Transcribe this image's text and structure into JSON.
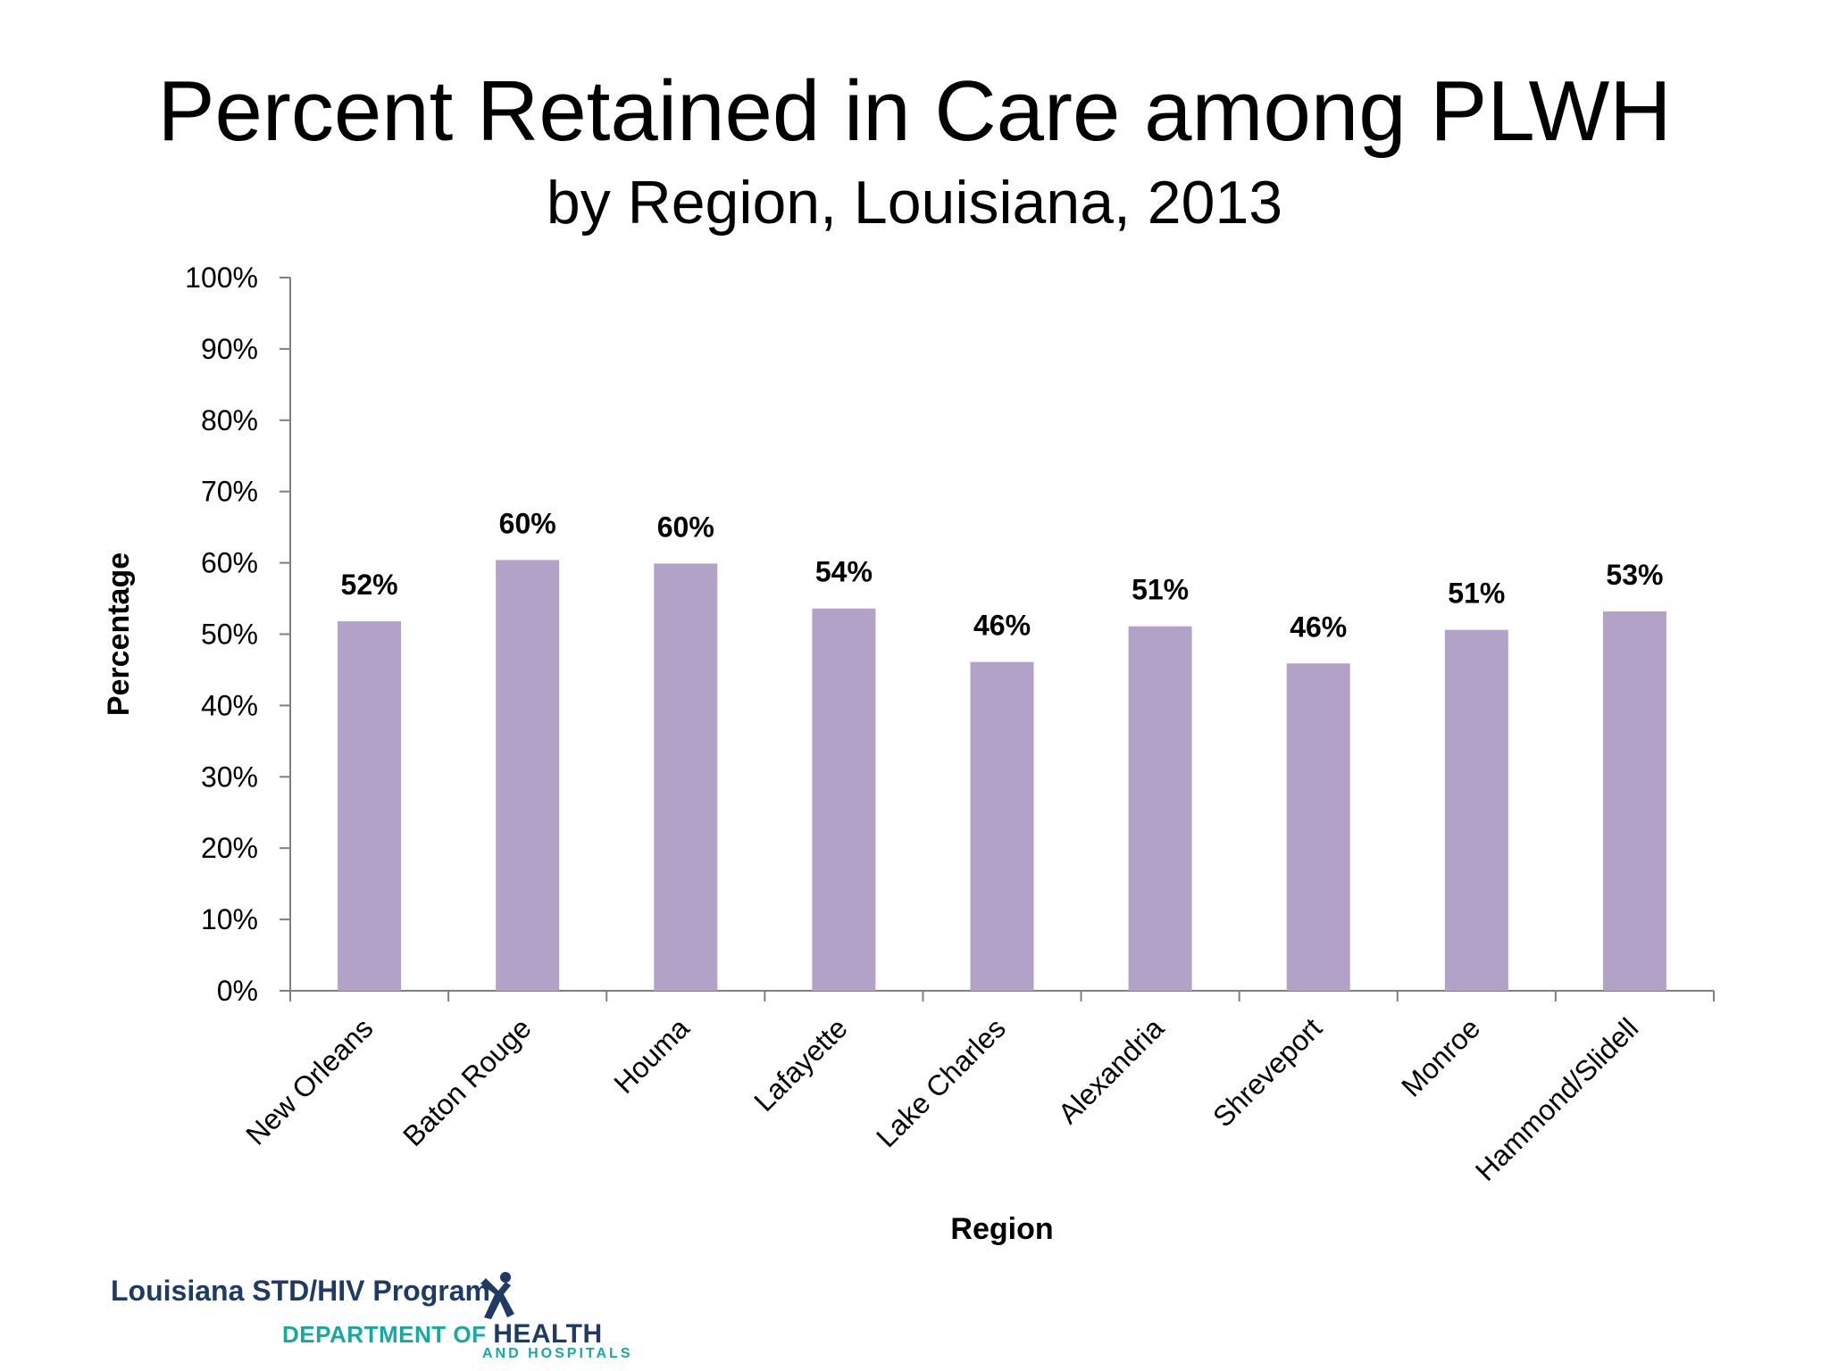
{
  "chart_data": {
    "type": "bar",
    "title": "Percent Retained in Care among PLWH",
    "subtitle": "by Region, Louisiana, 2013",
    "xlabel": "Region",
    "ylabel": "Percentage",
    "ylim": [
      0,
      100
    ],
    "yticks": [
      "0%",
      "10%",
      "20%",
      "30%",
      "40%",
      "50%",
      "60%",
      "70%",
      "80%",
      "90%",
      "100%"
    ],
    "categories": [
      "New Orleans",
      "Baton Rouge",
      "Houma",
      "Lafayette",
      "Lake Charles",
      "Alexandria",
      "Shreveport",
      "Monroe",
      "Hammond/Slidell"
    ],
    "values": [
      51.8,
      60.4,
      59.9,
      53.6,
      46.1,
      51.1,
      45.9,
      50.6,
      53.2
    ],
    "data_labels": [
      "52%",
      "60%",
      "60%",
      "54%",
      "46%",
      "51%",
      "46%",
      "51%",
      "53%"
    ],
    "bar_color": "#b3a2c8",
    "grid": false,
    "legend": "none"
  },
  "footer": {
    "program": "Louisiana STD/HIV Program",
    "dept_prefix": "DEPARTMENT OF ",
    "dept_health": "HEALTH",
    "dept_sub": "AND HOSPITALS",
    "logo_icon": "person-figure-icon"
  }
}
